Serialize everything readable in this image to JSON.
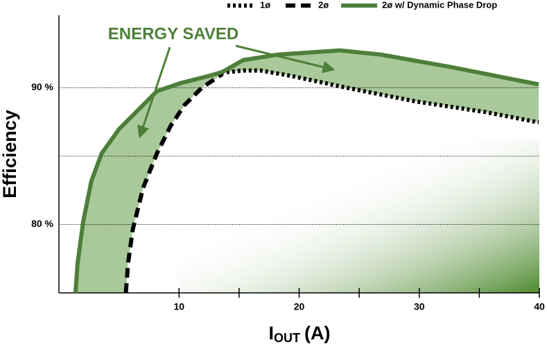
{
  "chart_data": {
    "type": "line",
    "y_label": "Efficiency",
    "x_label": "I",
    "x_label_sub": "OUT",
    "x_label_suffix": "(A)",
    "annotation": "ENERGY SAVED",
    "xlim": [
      0,
      40
    ],
    "ylim": [
      75,
      95.3
    ],
    "xticks": [
      10,
      20,
      30,
      40
    ],
    "xminor_ticks": [
      15,
      25,
      35
    ],
    "yticks": [
      {
        "value": 80,
        "label": "80 %"
      },
      {
        "value": 90,
        "label": "90 %"
      }
    ],
    "grid_lines": [
      80,
      85,
      90
    ],
    "series": [
      {
        "name": "1ø",
        "color": "#000000",
        "style": "dotted",
        "x": [
          13.5,
          15.34,
          16.78,
          19.37,
          23.97,
          29.71,
          35.46,
          39.94
        ],
        "values": [
          91.11,
          91.26,
          91.26,
          90.86,
          90.0,
          89.0,
          88.23,
          87.47
        ]
      },
      {
        "name": "2ø",
        "color": "#000000",
        "style": "dashed",
        "x": [
          5.57,
          5.75,
          6.15,
          7.01,
          8.16,
          9.31,
          10.46,
          11.9,
          13.62
        ],
        "values": [
          75.0,
          77.12,
          79.65,
          82.68,
          85.2,
          87.22,
          88.74,
          90.0,
          91.01
        ]
      },
      {
        "name": "2ø w/ Dynamic Phase Drop",
        "color": "#4e7f3a",
        "style": "solid",
        "x": [
          1.38,
          1.55,
          2.01,
          2.7,
          3.56,
          5.0,
          6.72,
          8.16,
          10.17,
          12.47,
          13.62,
          15.34,
          18.22,
          23.39,
          26.84,
          32.59,
          39.94
        ],
        "values": [
          75.0,
          77.12,
          80.15,
          83.18,
          85.2,
          86.97,
          88.48,
          89.75,
          90.35,
          90.86,
          91.16,
          92.02,
          92.42,
          92.73,
          92.42,
          91.52,
          90.25
        ]
      }
    ]
  }
}
